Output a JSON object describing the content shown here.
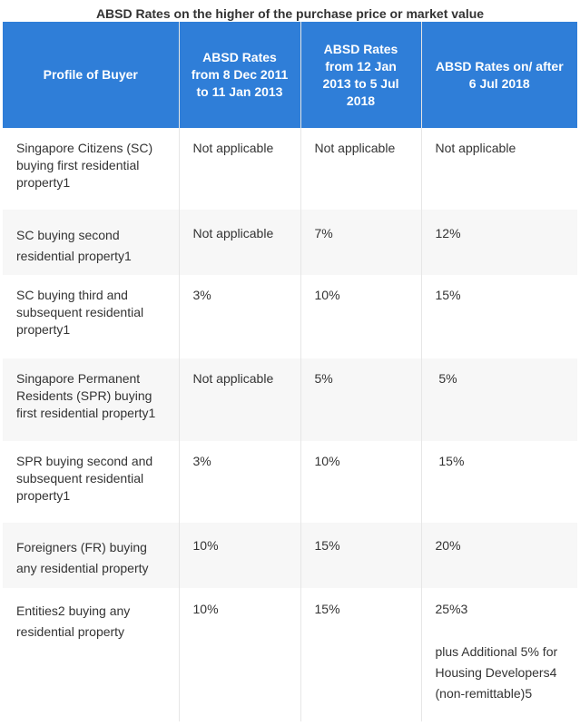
{
  "caption": "ABSD Rates on the higher of the purchase price or market value",
  "headers": {
    "profile": "Profile of Buyer",
    "col1": "ABSD Rates from 8 Dec 2011 to 11 Jan 2013",
    "col2": "ABSD Rates from 12 Jan 2013 to 5 Jul 2018",
    "col3": "ABSD Rates on/ after 6 Jul 2018"
  },
  "rows": [
    {
      "profile": "Singapore Citizens (SC) buying first residential property1",
      "c1": "Not applicable",
      "c2": "Not applicable",
      "c3": "Not applicable"
    },
    {
      "profile": "SC buying second residential property1",
      "c1": "Not applicable",
      "c2": "7%",
      "c3": "12%"
    },
    {
      "profile": "SC buying third and subsequent residential property1",
      "c1": "3%",
      "c2": "10%",
      "c3": "15%"
    },
    {
      "profile": "Singapore Permanent Residents (SPR) buying first residential property1",
      "c1": "Not applicable",
      "c2": "5%",
      "c3": " 5%"
    },
    {
      "profile": "SPR buying second and subsequent residential property1",
      "c1": "3%",
      "c2": "10%",
      "c3": " 15%"
    },
    {
      "profile": "Foreigners (FR) buying any residential property",
      "c1": "10%",
      "c2": "15%",
      "c3": "20%"
    },
    {
      "profile": "Entities2 buying any residential property",
      "c1": "10%",
      "c2": "15%",
      "c3": "25%3",
      "c3_extra": "plus Additional 5% for Housing Developers4 (non-remittable)5"
    }
  ]
}
